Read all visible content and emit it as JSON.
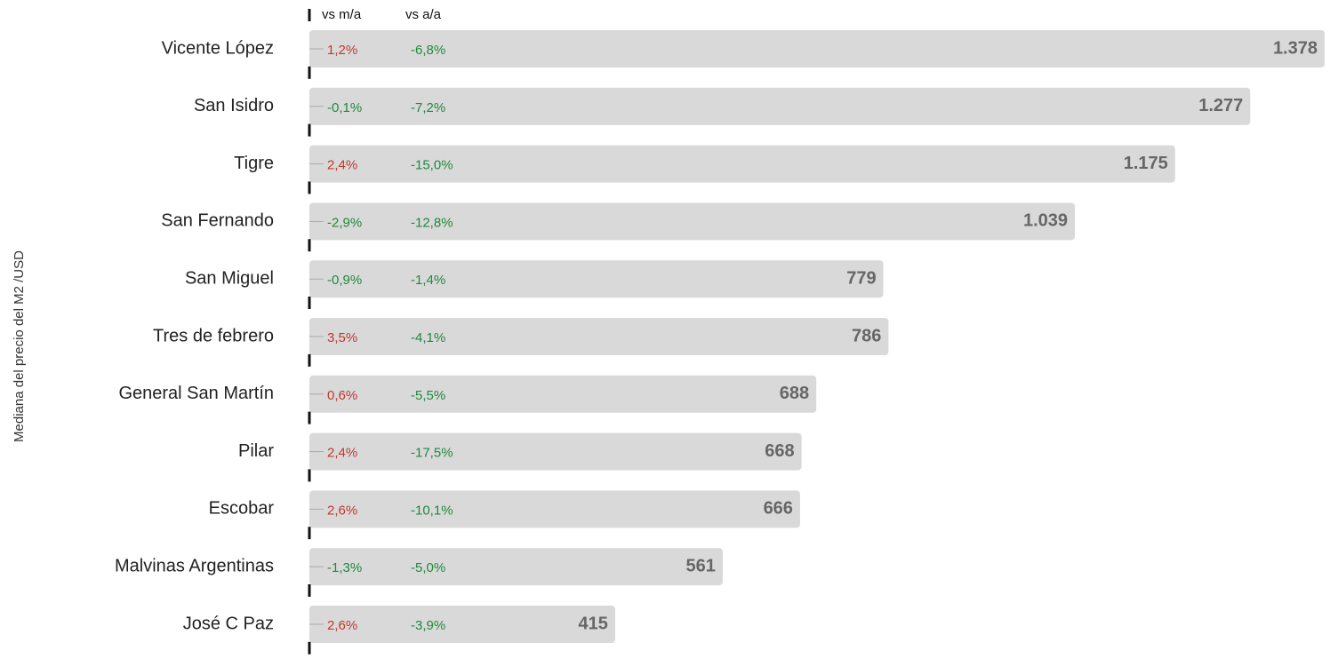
{
  "chart_data": {
    "type": "bar",
    "orientation": "horizontal",
    "y_label": "Mediana del precio del M2 /USD",
    "categories": [
      "Vicente López",
      "San Isidro",
      "Tigre",
      "San Fernando",
      "San Miguel",
      "Tres de febrero",
      "General San Martín",
      "Pilar",
      "Escobar",
      "Malvinas Argentinas",
      "José C Paz"
    ],
    "values": [
      1378,
      1277,
      1175,
      1039,
      779,
      786,
      688,
      668,
      666,
      561,
      415
    ],
    "value_labels": [
      "1.378",
      "1.277",
      "1.175",
      "1.039",
      "779",
      "786",
      "688",
      "668",
      "666",
      "561",
      "415"
    ],
    "color": "#d9d9d9",
    "columns": [
      {
        "name": "vs m/a",
        "values": [
          1.2,
          -0.1,
          2.4,
          -2.9,
          -0.9,
          3.5,
          0.6,
          2.4,
          2.6,
          -1.3,
          2.6
        ],
        "value_labels": [
          "1,2%",
          "-0,1%",
          "2,4%",
          "-2,9%",
          "-0,9%",
          "3,5%",
          "0,6%",
          "2,4%",
          "2,6%",
          "-1,3%",
          "2,6%"
        ]
      },
      {
        "name": "vs a/a",
        "values": [
          -6.8,
          -7.2,
          -15.0,
          -12.8,
          -1.4,
          -4.1,
          -5.5,
          -17.5,
          -10.1,
          -5.0,
          -3.9
        ],
        "value_labels": [
          "-6,8%",
          "-7,2%",
          "-15,0%",
          "-12,8%",
          "-1,4%",
          "-4,1%",
          "-5,5%",
          "-17,5%",
          "-10,1%",
          "-5,0%",
          "-3,9%"
        ]
      }
    ],
    "positive_color": "#c0392b",
    "negative_color": "#1e8a3c"
  }
}
